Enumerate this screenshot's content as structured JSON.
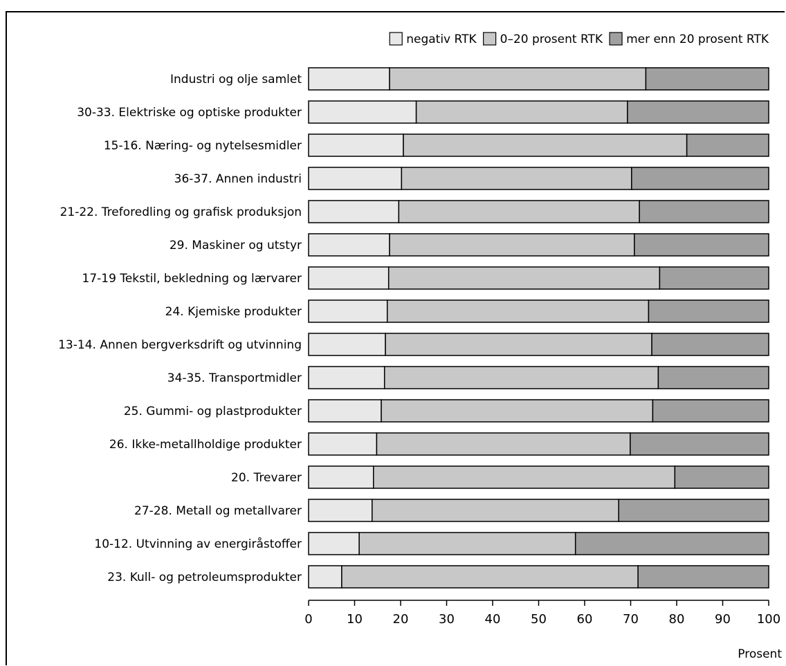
{
  "figure_title": "",
  "chart_data": {
    "type": "bar",
    "orientation": "horizontal",
    "stacked": true,
    "title": "",
    "xlabel": "Prosent",
    "ylabel": "",
    "xlim": [
      0,
      100
    ],
    "xticks": [
      0,
      10,
      20,
      30,
      40,
      50,
      60,
      70,
      80,
      90,
      100
    ],
    "legend_position": "top-right",
    "categories": [
      "Industri og olje samlet",
      "30-33. Elektriske og optiske produkter",
      "15-16. Næring- og nytelsesmidler",
      "36-37. Annen industri",
      "21-22. Treforedling og grafisk produksjon",
      "29. Maskiner og utstyr",
      "17-19 Tekstil, bekledning og lærvarer",
      "24. Kjemiske produkter",
      "13-14. Annen bergverksdrift og utvinning",
      "34-35. Transportmidler",
      "25. Gummi- og plastprodukter",
      "26. Ikke-metallholdige produkter",
      "20. Trevarer",
      "27-28. Metall og metallvarer",
      "10-12. Utvinning av energiråstoffer",
      "23. Kull- og petroleumsprodukter"
    ],
    "series": [
      {
        "name": "negativ RTK",
        "color": "#e8e8e8",
        "values": [
          17.6,
          23.4,
          20.6,
          20.2,
          19.6,
          17.6,
          17.4,
          17.1,
          16.7,
          16.5,
          15.8,
          14.8,
          14.1,
          13.8,
          11.0,
          7.2
        ]
      },
      {
        "name": "0–20 prosent RTK",
        "color": "#c8c8c8",
        "values": [
          55.7,
          45.9,
          61.6,
          50.0,
          52.3,
          53.2,
          58.9,
          56.8,
          57.9,
          59.5,
          59.0,
          55.1,
          65.5,
          53.6,
          47.0,
          64.4
        ]
      },
      {
        "name": "mer enn 20 prosent RTK",
        "color": "#a0a0a0",
        "values": [
          26.7,
          30.7,
          17.8,
          29.8,
          28.1,
          29.2,
          23.7,
          26.1,
          25.4,
          24.0,
          25.2,
          30.1,
          20.4,
          32.6,
          42.0,
          28.4
        ]
      }
    ]
  }
}
